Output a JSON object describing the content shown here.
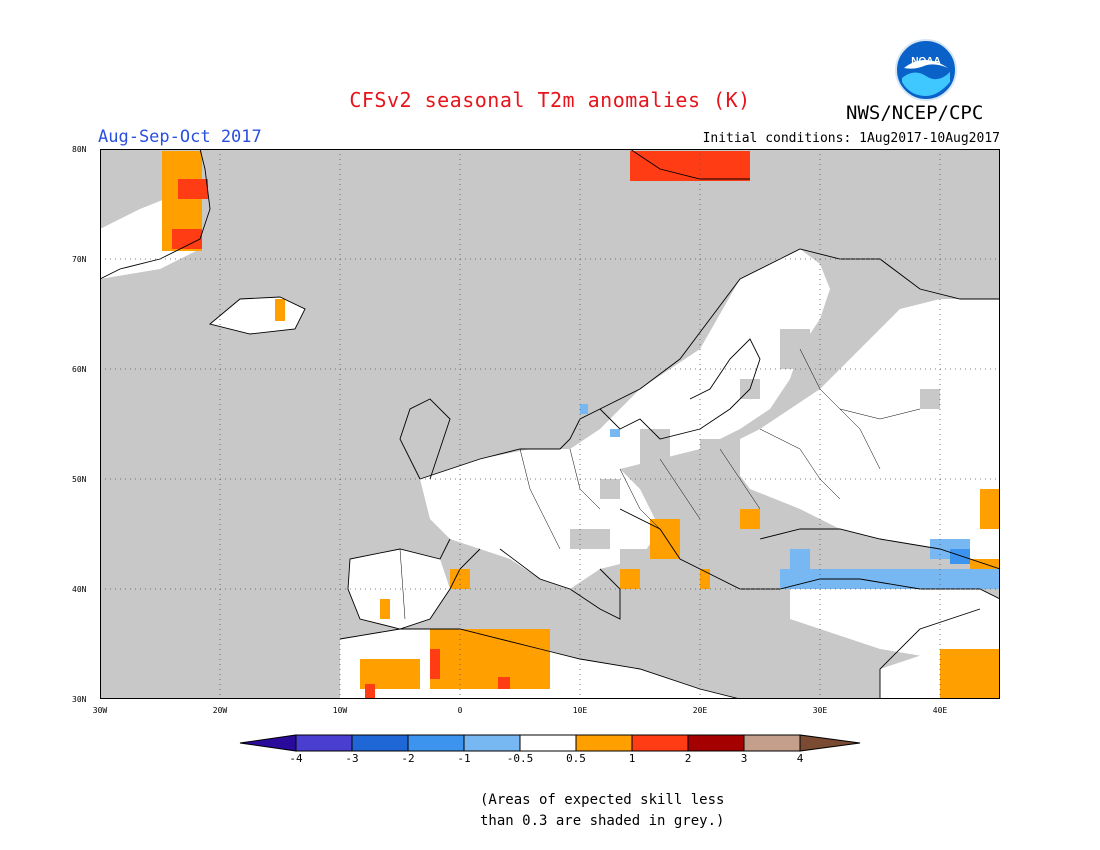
{
  "title": "CFSv2 seasonal T2m anomalies (K)",
  "agency": "NWS/NCEP/CPC",
  "logo": {
    "text": "NOAA"
  },
  "period": "Aug-Sep-Oct 2017",
  "initial_conditions": "Initial conditions: 1Aug2017-10Aug2017",
  "note_line1": "(Areas of expected skill less",
  "note_line2": "than 0.3 are shaded in grey.)",
  "map": {
    "lon_range": [
      -30,
      45
    ],
    "lat_range": [
      30,
      80
    ],
    "lat_labels": [
      "80N",
      "70N",
      "60N",
      "50N",
      "40N",
      "30N"
    ],
    "lon_labels": [
      "30W",
      "20W",
      "10W",
      "0",
      "10E",
      "20E",
      "30E",
      "40E"
    ],
    "background_color": "#c8c8c8"
  },
  "colorbar": {
    "labels": [
      "-4",
      "-3",
      "-2",
      "-1",
      "-0.5",
      "0.5",
      "1",
      "2",
      "3",
      "4"
    ],
    "colors": [
      "#2a0a9a",
      "#4a3ed0",
      "#1f66d6",
      "#3c94ee",
      "#78b8f2",
      "#ffffff",
      "#ff9f00",
      "#ff3c14",
      "#a40000",
      "#c4a08c",
      "#7a4a32"
    ]
  }
}
